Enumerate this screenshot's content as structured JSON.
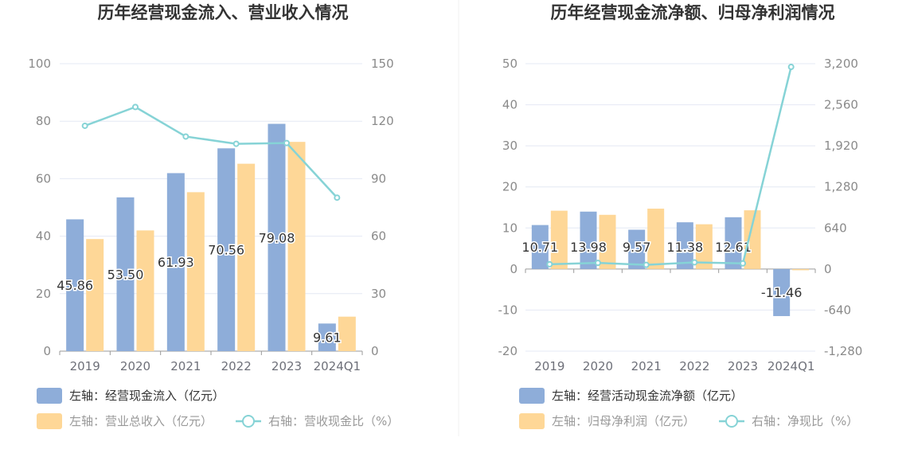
{
  "colors": {
    "bar_blue": "#8eadd9",
    "bar_orange": "#fed797",
    "line_teal": "#86d3d6",
    "grid": "#e4e8f4",
    "axis": "#9a9a9a",
    "legend_text": "#333333",
    "legend_text_light": "#999999"
  },
  "chart_data": [
    {
      "id": "left",
      "type": "bar",
      "title": "历年经营现金流入、营业收入情况",
      "categories": [
        "2019",
        "2020",
        "2021",
        "2022",
        "2023",
        "2024Q1"
      ],
      "left_axis": {
        "ticks": [
          "0",
          "20",
          "40",
          "60",
          "80",
          "100"
        ],
        "min": 0,
        "max": 100
      },
      "right_axis": {
        "ticks": [
          "0",
          "30",
          "60",
          "90",
          "120",
          "150"
        ],
        "min": 0,
        "max": 150
      },
      "series": [
        {
          "name": "左轴：经营现金流入（亿元）",
          "axis": "left",
          "kind": "bar",
          "values": [
            45.86,
            53.5,
            61.93,
            70.56,
            79.08,
            9.61
          ],
          "labels": [
            "45.86",
            "53.50",
            "61.93",
            "70.56",
            "79.08",
            "9.61"
          ]
        },
        {
          "name": "左轴：营业总收入（亿元）",
          "axis": "left",
          "kind": "bar",
          "values": [
            39.0,
            42.0,
            55.3,
            65.2,
            72.8,
            12.0
          ]
        },
        {
          "name": "右轴：营收现金比（%）",
          "axis": "right",
          "kind": "line",
          "values": [
            117.6,
            127.4,
            112.0,
            108.2,
            108.6,
            80.1
          ]
        }
      ]
    },
    {
      "id": "right",
      "type": "bar",
      "title": "历年经营现金流净额、归母净利润情况",
      "categories": [
        "2019",
        "2020",
        "2021",
        "2022",
        "2023",
        "2024Q1"
      ],
      "left_axis": {
        "ticks": [
          "-20",
          "-10",
          "0",
          "10",
          "20",
          "30",
          "40",
          "50"
        ],
        "min": -20,
        "max": 50
      },
      "right_axis": {
        "ticks": [
          "-1,280",
          "-640",
          "0",
          "640",
          "1,280",
          "1,920",
          "2,560",
          "3,200"
        ],
        "min": -1280,
        "max": 3200
      },
      "series": [
        {
          "name": "左轴：经营活动现金流净额（亿元）",
          "axis": "left",
          "kind": "bar",
          "values": [
            10.71,
            13.98,
            9.57,
            11.38,
            12.61,
            -11.46
          ],
          "labels": [
            "10.71",
            "13.98",
            "9.57",
            "11.38",
            "12.61",
            "-11.46"
          ]
        },
        {
          "name": "左轴：归母净利润（亿元）",
          "axis": "left",
          "kind": "bar",
          "values": [
            14.2,
            13.2,
            14.7,
            10.9,
            14.3,
            -0.3
          ]
        },
        {
          "name": "右轴：净现比（%）",
          "axis": "right",
          "kind": "line",
          "values": [
            75,
            96,
            65,
            104,
            88,
            3150
          ]
        }
      ]
    }
  ]
}
